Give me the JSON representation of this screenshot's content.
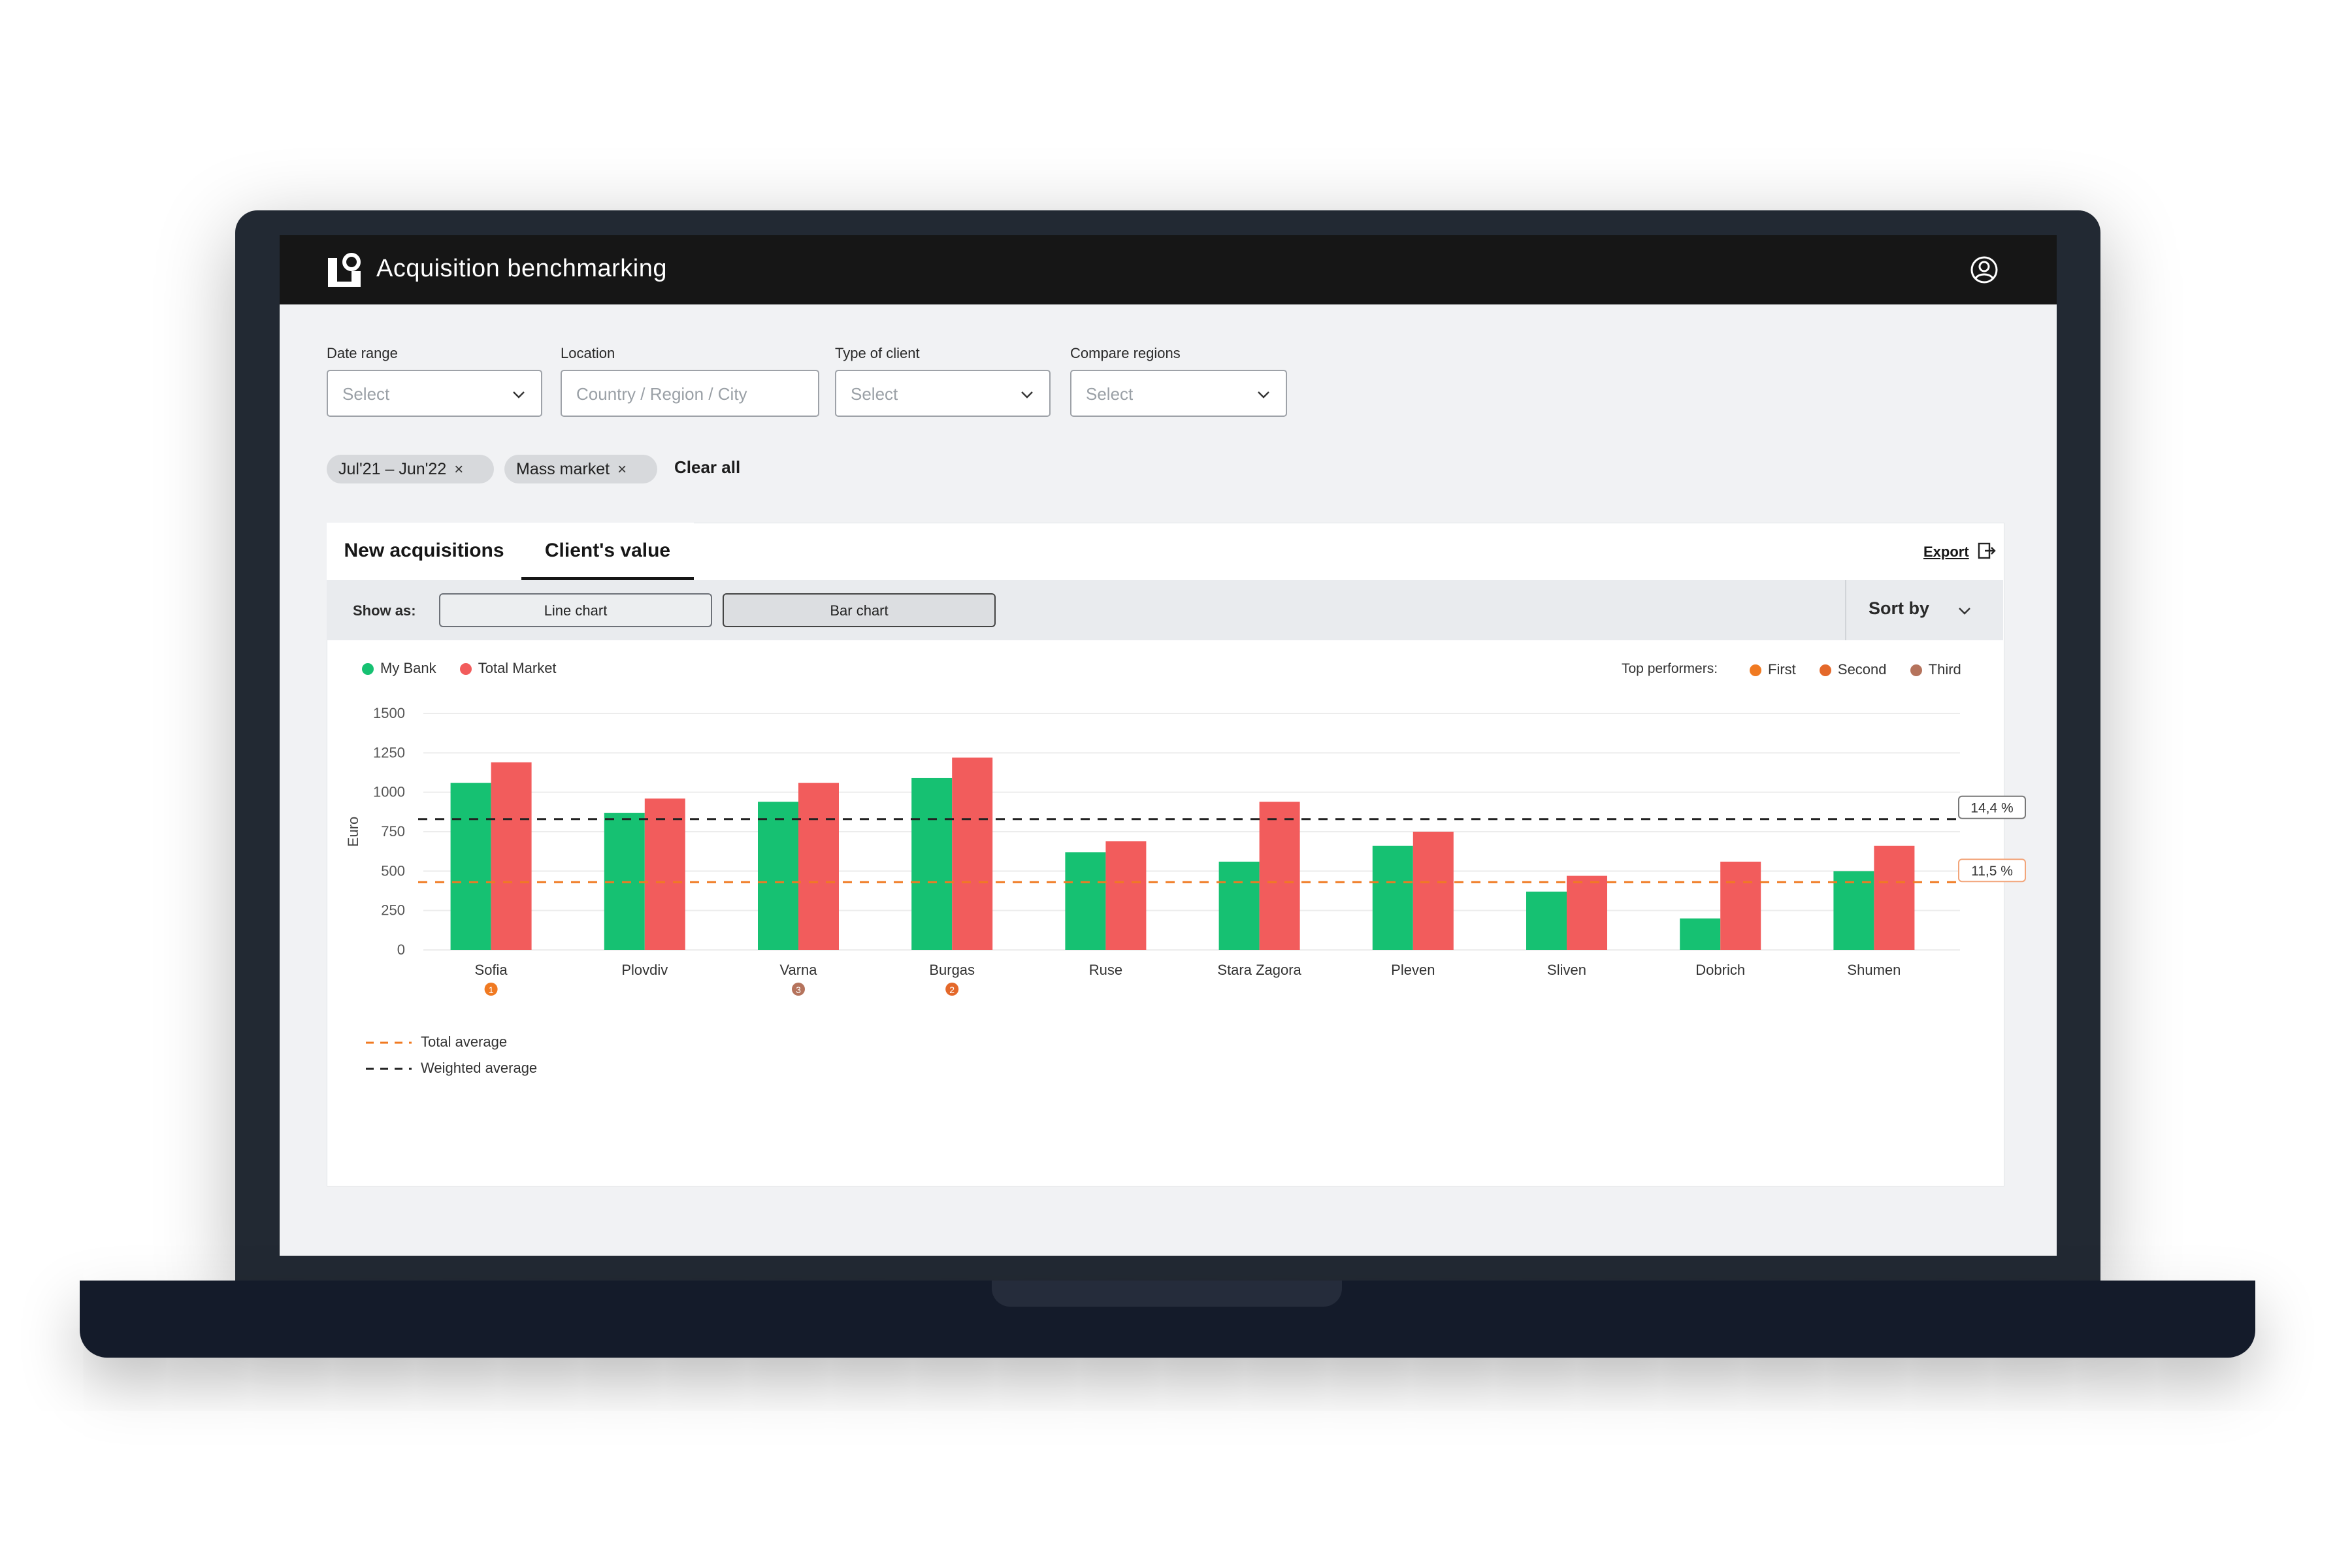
{
  "app": {
    "title": "Acquisition benchmarking",
    "logo_icon": "brand-logo-icon",
    "user_icon": "user-account-icon"
  },
  "filters": [
    {
      "label": "Date range",
      "placeholder": "Select",
      "has_chevron": true
    },
    {
      "label": "Location",
      "placeholder": "Country / Region / City",
      "has_chevron": false
    },
    {
      "label": "Type of client",
      "placeholder": "Select",
      "has_chevron": true
    },
    {
      "label": "Compare regions",
      "placeholder": "Select",
      "has_chevron": true
    }
  ],
  "chips": [
    {
      "label": "Jul'21 – Jun'22"
    },
    {
      "label": "Mass market"
    }
  ],
  "chip_remove": "×",
  "clear_all": "Clear all",
  "tabs": [
    {
      "label": "New acquisitions",
      "active": false
    },
    {
      "label": "Client's value",
      "active": true
    }
  ],
  "export": {
    "label": "Export"
  },
  "toolbar": {
    "show_as": "Show as:",
    "line_chart": "Line chart",
    "bar_chart": "Bar chart",
    "selected": "Bar chart",
    "sort_by": "Sort by"
  },
  "legend": {
    "series": [
      {
        "name": "My Bank",
        "color": "#16c172"
      },
      {
        "name": "Total Market",
        "color": "#f25c5c"
      }
    ]
  },
  "top_performers": {
    "label": "Top performers:",
    "items": [
      {
        "name": "First",
        "color": "#f07a22"
      },
      {
        "name": "Second",
        "color": "#e4682a"
      },
      {
        "name": "Third",
        "color": "#b5735c"
      }
    ]
  },
  "chart_data": {
    "type": "bar",
    "ylabel": "Euro",
    "xlabel": "",
    "ylim": [
      0,
      1500
    ],
    "yticks": [
      0,
      250,
      500,
      750,
      1000,
      1250,
      1500
    ],
    "grid": true,
    "legend_position": "top-left",
    "categories": [
      "Sofia",
      "Plovdiv",
      "Varna",
      "Burgas",
      "Ruse",
      "Stara Zagora",
      "Pleven",
      "Sliven",
      "Dobrich",
      "Shumen"
    ],
    "series": [
      {
        "name": "My Bank",
        "color": "#16c172",
        "values": [
          1060,
          870,
          940,
          1090,
          620,
          560,
          660,
          370,
          200,
          500
        ]
      },
      {
        "name": "Total Market",
        "color": "#f25c5c",
        "values": [
          1190,
          960,
          1060,
          1220,
          690,
          940,
          750,
          470,
          560,
          660
        ]
      }
    ],
    "performer_markers": [
      {
        "category": "Sofia",
        "rank": "1",
        "color": "#f07a22"
      },
      {
        "category": "Varna",
        "rank": "3",
        "color": "#b5735c"
      },
      {
        "category": "Burgas",
        "rank": "2",
        "color": "#e4682a"
      }
    ],
    "reference_lines": [
      {
        "name": "Weighted average",
        "value": 830,
        "label": "14,4 %",
        "color": "#222222"
      },
      {
        "name": "Total average",
        "value": 430,
        "label": "11,5 %",
        "color": "#f07a22"
      }
    ]
  }
}
